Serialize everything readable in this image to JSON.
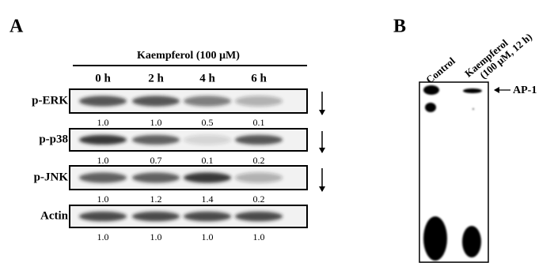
{
  "panel_a": {
    "label": "A",
    "treatment": "Kaempferol  (100 µM)",
    "timepoints": [
      "0 h",
      "2 h",
      "4 h",
      "6 h"
    ],
    "rows": [
      {
        "name": "p-ERK",
        "values": [
          "1.0",
          "1.0",
          "0.5",
          "0.1"
        ]
      },
      {
        "name": "p-p38",
        "values": [
          "1.0",
          "0.7",
          "0.1",
          "0.2"
        ]
      },
      {
        "name": "p-JNK",
        "values": [
          "1.0",
          "1.2",
          "1.4",
          "0.2"
        ]
      },
      {
        "name": "Actin",
        "values": [
          "1.0",
          "1.0",
          "1.0",
          "1.0"
        ]
      }
    ]
  },
  "panel_b": {
    "label": "B",
    "lanes": [
      "Control",
      [
        "Kaempferol",
        "(100 µM, 12 h)"
      ]
    ],
    "marker": "AP-1"
  }
}
